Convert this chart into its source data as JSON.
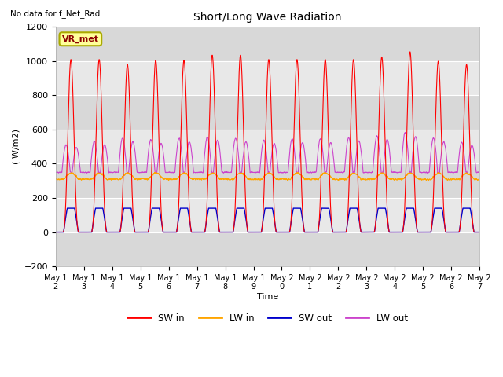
{
  "title": "Short/Long Wave Radiation",
  "subtitle": "No data for f_Net_Rad",
  "ylabel": "( W/m2)",
  "xlabel": "Time",
  "ylim": [
    -200,
    1200
  ],
  "yticks": [
    -200,
    0,
    200,
    400,
    600,
    800,
    1000,
    1200
  ],
  "num_days": 15,
  "day_start": 12,
  "legend_labels": [
    "SW in",
    "LW in",
    "SW out",
    "LW out"
  ],
  "legend_colors": [
    "#ff0000",
    "#ffa500",
    "#0000cc",
    "#cc44cc"
  ],
  "colors": {
    "SW_in": "#ff0000",
    "LW_in": "#ffa500",
    "SW_out": "#0000cc",
    "LW_out": "#cc44cc"
  },
  "grid_color": "#cccccc",
  "bg_color": "#e0e0e0",
  "plot_bg": "#f0f0f0",
  "box_label": "VR_met",
  "box_facecolor": "#ffff99",
  "box_edgecolor": "#aaaa00",
  "sw_in_peaks": [
    1010,
    1010,
    980,
    1005,
    1005,
    1035,
    1035,
    1010,
    1010,
    1010,
    1010,
    1025,
    1055,
    1000,
    980
  ],
  "lw_out_peaks": [
    520,
    540,
    560,
    550,
    560,
    570,
    560,
    550,
    555,
    555,
    565,
    575,
    595,
    560,
    535
  ],
  "lw_in_base": 310,
  "sw_out_peak": 140
}
